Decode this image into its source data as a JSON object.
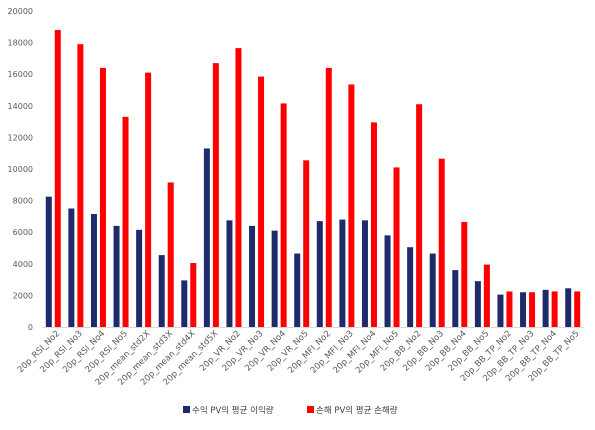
{
  "chart_data": {
    "type": "bar",
    "title": "",
    "xlabel": "",
    "ylabel": "",
    "ylim": [
      0,
      20000
    ],
    "yticks": [
      0,
      2000,
      4000,
      6000,
      8000,
      10000,
      12000,
      14000,
      16000,
      18000,
      20000
    ],
    "yticks_labels": [
      "0",
      "2000",
      "4000",
      "6000",
      "8000",
      "10000",
      "12000",
      "14000",
      "16000",
      "18000",
      "20000"
    ],
    "grid": false,
    "legend_position": "bottom",
    "categories": [
      "20p_RSI_No2",
      "20p_RSI_No3",
      "20p_RSI_No4",
      "20p_RSI_No5",
      "20p_mean_std2X",
      "20p_mean_std3X",
      "20p_mean_std4X",
      "20p_mean_std5X",
      "20p_VR_No2",
      "20p_VR_No3",
      "20p_VR_No4",
      "20p_VR_No5",
      "20p_MFI_No2",
      "20p_MFI_No3",
      "20p_MFI_No4",
      "20p_MFI_No5",
      "20p_BB_No2",
      "20p_BB_No3",
      "20p_BB_No4",
      "20p_BB_No5",
      "20p_BB_TP_No2",
      "20p_BB_TP_No3",
      "20p_BB_TP_No4",
      "20p_BB_TP_No5"
    ],
    "series": [
      {
        "name": "수익 PV의 평균 이익량",
        "color": "#1f2a6b",
        "values": [
          8250,
          7500,
          7150,
          6400,
          6150,
          4550,
          2950,
          11300,
          6750,
          6400,
          6100,
          4650,
          6700,
          6800,
          6750,
          5800,
          5050,
          4650,
          3600,
          2900,
          2050,
          2200,
          2350,
          2450
        ]
      },
      {
        "name": "손해 PV의 평균 손해량",
        "color": "#ff0000",
        "values": [
          18800,
          17900,
          16400,
          13300,
          16100,
          9150,
          4050,
          16700,
          17650,
          15850,
          14150,
          10550,
          16400,
          15350,
          12950,
          10100,
          14100,
          10650,
          6650,
          3950,
          2250,
          2200,
          2250,
          2250
        ]
      }
    ]
  }
}
